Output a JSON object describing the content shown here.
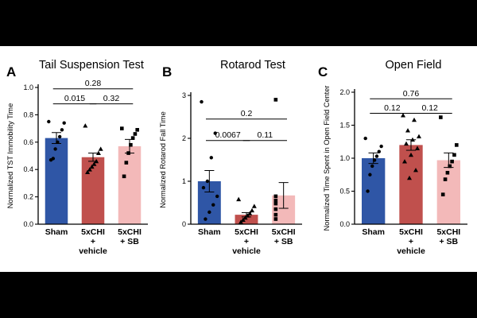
{
  "colors": {
    "sham": "#2f56a6",
    "vehicle": "#c0504d",
    "sb": "#f3b9b9",
    "background": "#000000",
    "panel": "#ffffff"
  },
  "chart_data": [
    {
      "type": "bar",
      "panel_letter": "A",
      "title": "Tail Suspension Test",
      "xlabel": "",
      "ylabel": "Normalized TST Immobility Time",
      "ylim": [
        0,
        1.0
      ],
      "yticks": [
        "0.0",
        "0.2",
        "0.4",
        "0.6",
        "0.8",
        "1.0"
      ],
      "yticks_values": [
        0,
        0.2,
        0.4,
        0.6,
        0.8,
        1.0
      ],
      "categories": [
        "Sham",
        "5xCHI + vehicle",
        "5xCHI + SB"
      ],
      "category_lines": [
        [
          "Sham"
        ],
        [
          "5xCHI",
          "+",
          "vehicle"
        ],
        [
          "5xCHI",
          "+ SB"
        ]
      ],
      "values": [
        0.63,
        0.49,
        0.57
      ],
      "errors": [
        0.04,
        0.03,
        0.05
      ],
      "points": [
        [
          0.75,
          0.74,
          0.69,
          0.64,
          0.6,
          0.55,
          0.48,
          0.47
        ],
        [
          0.72,
          0.55,
          0.52,
          0.46,
          0.44,
          0.42,
          0.4,
          0.38
        ],
        [
          0.7,
          0.69,
          0.66,
          0.63,
          0.58,
          0.52,
          0.45,
          0.35
        ]
      ],
      "comparisons": [
        {
          "from": 0,
          "to": 2,
          "label": "0.28",
          "level": 0.99
        },
        {
          "from": 0,
          "to": 1,
          "label": "0.015",
          "level": 0.88
        },
        {
          "from": 1,
          "to": 2,
          "label": "0.32",
          "level": 0.88
        }
      ]
    },
    {
      "type": "bar",
      "panel_letter": "B",
      "title": "Rotarod Test",
      "xlabel": "",
      "ylabel": "Normalized Rotarod Fall Time",
      "ylim": [
        0,
        3
      ],
      "yticks": [
        "0",
        "1",
        "2",
        "3"
      ],
      "yticks_values": [
        0,
        1,
        2,
        3
      ],
      "categories": [
        "Sham",
        "5xCHI + vehicle",
        "5xCHI + SB"
      ],
      "category_lines": [
        [
          "Sham"
        ],
        [
          "5xCHI",
          "+",
          "vehicle"
        ],
        [
          "5xCHI",
          "+ SB"
        ]
      ],
      "values": [
        1.0,
        0.22,
        0.67
      ],
      "errors": [
        0.25,
        0.05,
        0.3
      ],
      "points": [
        [
          2.85,
          2.12,
          1.55,
          1.0,
          0.85,
          0.65,
          0.45,
          0.28,
          0.12
        ],
        [
          0.58,
          0.42,
          0.32,
          0.25,
          0.2,
          0.15,
          0.1,
          0.05
        ],
        [
          2.9,
          0.65,
          0.55,
          0.48,
          0.35,
          0.22,
          0.12
        ]
      ],
      "comparisons": [
        {
          "from": 0,
          "to": 2,
          "label": "0.2",
          "level": 2.45
        },
        {
          "from": 0,
          "to": 1,
          "label": "0.0067",
          "level": 1.95
        },
        {
          "from": 1,
          "to": 2,
          "label": "0.11",
          "level": 1.95
        }
      ]
    },
    {
      "type": "bar",
      "panel_letter": "C",
      "title": "Open Field",
      "xlabel": "",
      "ylabel": "Normalized Time Spent in Open Field Center",
      "ylim": [
        0,
        2.0
      ],
      "yticks": [
        "0.0",
        "0.5",
        "1.0",
        "1.5",
        "2.0"
      ],
      "yticks_values": [
        0,
        0.5,
        1.0,
        1.5,
        2.0
      ],
      "categories": [
        "Sham",
        "5xCHI + vehicle",
        "5xCHI + SB"
      ],
      "category_lines": [
        [
          "Sham"
        ],
        [
          "5xCHI",
          "+",
          "vehicle"
        ],
        [
          "5xCHI",
          "+ SB"
        ]
      ],
      "values": [
        1.0,
        1.2,
        0.97
      ],
      "errors": [
        0.08,
        0.08,
        0.11
      ],
      "points": [
        [
          1.3,
          1.18,
          1.1,
          1.03,
          0.97,
          0.88,
          0.75,
          0.5
        ],
        [
          1.65,
          1.58,
          1.42,
          1.33,
          1.28,
          1.22,
          1.15,
          1.05,
          0.95,
          0.82,
          0.7
        ],
        [
          1.62,
          1.2,
          1.05,
          0.95,
          0.88,
          0.78,
          0.68,
          0.45
        ]
      ],
      "comparisons": [
        {
          "from": 0,
          "to": 2,
          "label": "0.76",
          "level": 1.9
        },
        {
          "from": 0,
          "to": 1,
          "label": "0.12",
          "level": 1.68
        },
        {
          "from": 1,
          "to": 2,
          "label": "0.12",
          "level": 1.68
        }
      ]
    }
  ]
}
